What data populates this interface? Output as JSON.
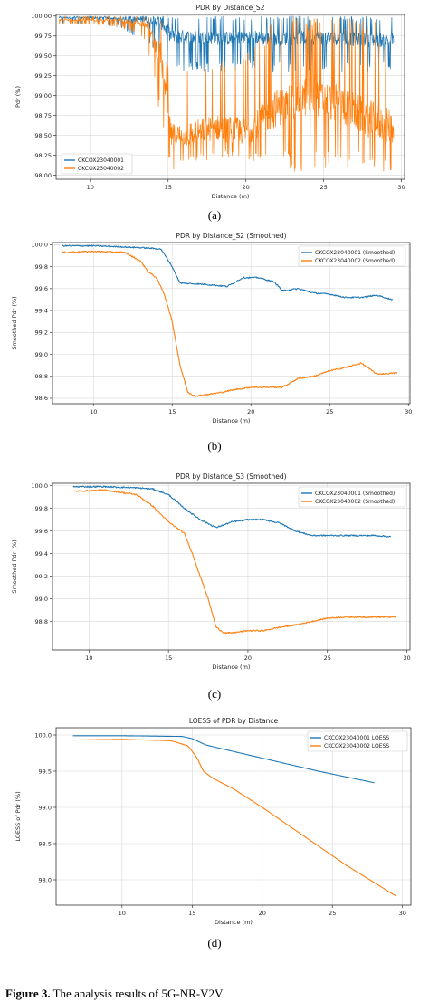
{
  "caption": {
    "label": "Figure 3.",
    "text": "The analysis results of 5G-NR-V2V"
  },
  "chart_data": [
    {
      "type": "line",
      "panel_label": "(a)",
      "title": "PDR By Distance_S2",
      "xlabel": "Distance (m)",
      "ylabel": "Pdr (%)",
      "xlim": [
        7.8,
        30.2
      ],
      "ylim": [
        97.95,
        100.02
      ],
      "xticks": [
        10,
        15,
        20,
        25,
        30
      ],
      "xtick_labels": [
        "10",
        "15",
        "20",
        "25",
        "30"
      ],
      "yticks": [
        98.0,
        98.25,
        98.5,
        98.75,
        99.0,
        99.25,
        99.5,
        99.75,
        100.0
      ],
      "ytick_labels": [
        "98.00",
        "98.25",
        "98.50",
        "98.75",
        "99.00",
        "99.25",
        "99.50",
        "99.75",
        "100.00"
      ],
      "grid": true,
      "legend_position": "lower-left",
      "series": [
        {
          "name": "CKCOX23040001",
          "color": "#1f77b4",
          "style": "noisy",
          "x": [
            8,
            10,
            12,
            14,
            14.6,
            15.2,
            17,
            19,
            20.2,
            21,
            23,
            24.5,
            26,
            28,
            29.5
          ],
          "base": [
            99.98,
            99.98,
            99.97,
            99.95,
            99.9,
            99.75,
            99.73,
            99.72,
            99.75,
            99.72,
            99.72,
            99.73,
            99.72,
            99.7,
            99.7
          ],
          "low": [
            99.9,
            99.9,
            99.85,
            99.6,
            99.4,
            99.3,
            99.3,
            99.3,
            99.35,
            99.3,
            99.3,
            99.3,
            99.3,
            99.3,
            99.3
          ],
          "high": [
            100.0,
            100.0,
            100.0,
            100.0,
            100.0,
            100.0,
            100.0,
            100.0,
            100.0,
            100.0,
            100.0,
            100.0,
            100.0,
            100.0,
            100.0
          ]
        },
        {
          "name": "CKCOX23040002",
          "color": "#ff7f0e",
          "style": "noisy",
          "x": [
            8,
            10,
            12,
            13.6,
            14.5,
            15.2,
            16,
            18,
            20,
            22,
            24,
            26,
            28,
            29.5
          ],
          "base": [
            99.95,
            99.95,
            99.94,
            99.9,
            99.5,
            98.5,
            98.5,
            98.6,
            98.55,
            98.85,
            99.0,
            98.9,
            98.7,
            98.6
          ],
          "low": [
            99.9,
            99.9,
            99.85,
            99.7,
            98.7,
            98.0,
            98.1,
            98.2,
            98.2,
            98.1,
            98.0,
            98.1,
            98.1,
            98.0
          ],
          "high": [
            100.0,
            100.0,
            100.0,
            100.0,
            100.0,
            99.2,
            99.3,
            99.5,
            99.6,
            100.0,
            100.0,
            100.0,
            100.0,
            99.7
          ]
        }
      ]
    },
    {
      "type": "line",
      "panel_label": "(b)",
      "title": "PDR by Distance_S2 (Smoothed)",
      "xlabel": "Distance (m)",
      "ylabel": "Smoothed Pdr (%)",
      "xlim": [
        7.4,
        30.1
      ],
      "ylim": [
        98.55,
        100.02
      ],
      "xticks": [
        10,
        15,
        20,
        25,
        30
      ],
      "xtick_labels": [
        "10",
        "15",
        "20",
        "25",
        "30"
      ],
      "yticks": [
        98.6,
        98.8,
        99.0,
        99.2,
        99.4,
        99.6,
        99.8,
        100.0
      ],
      "ytick_labels": [
        "98.6",
        "98.8",
        "99.0",
        "99.2",
        "99.4",
        "99.6",
        "99.8",
        "100.0"
      ],
      "grid": true,
      "legend_position": "top-right",
      "series": [
        {
          "name": "CKCOX23040001 (Smoothed)",
          "color": "#1f77b4",
          "style": "jitter",
          "x": [
            8,
            10,
            12,
            13.5,
            14.3,
            15,
            15.5,
            17,
            18.5,
            19.5,
            20.5,
            21.5,
            22,
            23,
            24,
            25,
            26,
            27,
            28,
            29
          ],
          "y": [
            99.99,
            99.99,
            99.98,
            99.97,
            99.96,
            99.8,
            99.65,
            99.64,
            99.62,
            99.7,
            99.7,
            99.66,
            99.58,
            99.6,
            99.56,
            99.55,
            99.52,
            99.52,
            99.54,
            99.5
          ]
        },
        {
          "name": "CKCOX23040002 (Smoothed)",
          "color": "#ff7f0e",
          "style": "jitter",
          "x": [
            8,
            10,
            12,
            13,
            13.5,
            14,
            14.5,
            15,
            15.5,
            16,
            16.5,
            18,
            19,
            20,
            21,
            22,
            23,
            24,
            25,
            26,
            27,
            28,
            29.3
          ],
          "y": [
            99.93,
            99.94,
            99.93,
            99.85,
            99.75,
            99.7,
            99.55,
            99.3,
            98.9,
            98.65,
            98.62,
            98.65,
            98.68,
            98.7,
            98.7,
            98.7,
            98.78,
            98.8,
            98.85,
            98.88,
            98.92,
            98.82,
            98.83
          ]
        }
      ]
    },
    {
      "type": "line",
      "panel_label": "(c)",
      "title": "PDR by Distance_S3 (Smoothed)",
      "xlabel": "Distance (m)",
      "ylabel": "Smoothed Pdr (%)",
      "xlim": [
        7.7,
        30.2
      ],
      "ylim": [
        98.55,
        100.02
      ],
      "xticks": [
        10,
        15,
        20,
        25,
        30
      ],
      "xtick_labels": [
        "10",
        "15",
        "20",
        "25",
        "30"
      ],
      "yticks": [
        98.8,
        99.0,
        99.2,
        99.4,
        99.6,
        99.8,
        100.0
      ],
      "ytick_labels": [
        "98.8",
        "99.0",
        "99.2",
        "99.4",
        "99.6",
        "99.8",
        "100.0"
      ],
      "grid": true,
      "legend_position": "top-right",
      "series": [
        {
          "name": "CKCOX23040001 (Smoothed)",
          "color": "#1f77b4",
          "style": "jitter",
          "x": [
            9,
            11,
            13,
            14,
            15,
            16,
            17,
            18,
            19,
            20,
            21,
            22,
            23,
            24,
            26,
            28,
            29
          ],
          "y": [
            99.99,
            99.99,
            99.98,
            99.97,
            99.92,
            99.8,
            99.7,
            99.63,
            99.68,
            99.7,
            99.7,
            99.67,
            99.6,
            99.56,
            99.56,
            99.56,
            99.55
          ]
        },
        {
          "name": "CKCOX23040002 (Smoothed)",
          "color": "#ff7f0e",
          "style": "jitter",
          "x": [
            9,
            11,
            13,
            14,
            15,
            16,
            16.5,
            17,
            17.5,
            18,
            18.5,
            19,
            20,
            21,
            22,
            23,
            24,
            25,
            26,
            27,
            28,
            29.3
          ],
          "y": [
            99.95,
            99.96,
            99.92,
            99.82,
            99.68,
            99.58,
            99.4,
            99.2,
            99.0,
            98.75,
            98.7,
            98.7,
            98.72,
            98.72,
            98.75,
            98.77,
            98.8,
            98.83,
            98.84,
            98.84,
            98.84,
            98.84
          ]
        }
      ]
    },
    {
      "type": "line",
      "panel_label": "(d)",
      "title": "LOESS of PDR by Distance",
      "xlabel": "Distance (m)",
      "ylabel": "LOESS of Pdr (%)",
      "xlim": [
        5.3,
        30.6
      ],
      "ylim": [
        97.65,
        100.1
      ],
      "xticks": [
        10,
        15,
        20,
        25,
        30
      ],
      "xtick_labels": [
        "10",
        "15",
        "20",
        "25",
        "30"
      ],
      "yticks": [
        98.0,
        98.5,
        99.0,
        99.5,
        100.0
      ],
      "ytick_labels": [
        "98.0",
        "98.5",
        "99.0",
        "99.5",
        "100.0"
      ],
      "grid": true,
      "legend_position": "top-right",
      "series": [
        {
          "name": "CKCOX23040001 LOESS",
          "color": "#1f77b4",
          "style": "smooth",
          "x": [
            6.5,
            10,
            14.3,
            15,
            16,
            20,
            24,
            28
          ],
          "y": [
            99.99,
            99.99,
            99.98,
            99.95,
            99.86,
            99.68,
            99.5,
            99.34
          ]
        },
        {
          "name": "CKCOX23040002 LOESS",
          "color": "#ff7f0e",
          "style": "smooth",
          "x": [
            6.5,
            10,
            13.5,
            14.7,
            15.3,
            15.8,
            16.5,
            18,
            20,
            23,
            26,
            29.5
          ],
          "y": [
            99.93,
            99.94,
            99.92,
            99.85,
            99.7,
            99.5,
            99.4,
            99.25,
            99.0,
            98.6,
            98.2,
            97.78
          ]
        }
      ]
    }
  ]
}
